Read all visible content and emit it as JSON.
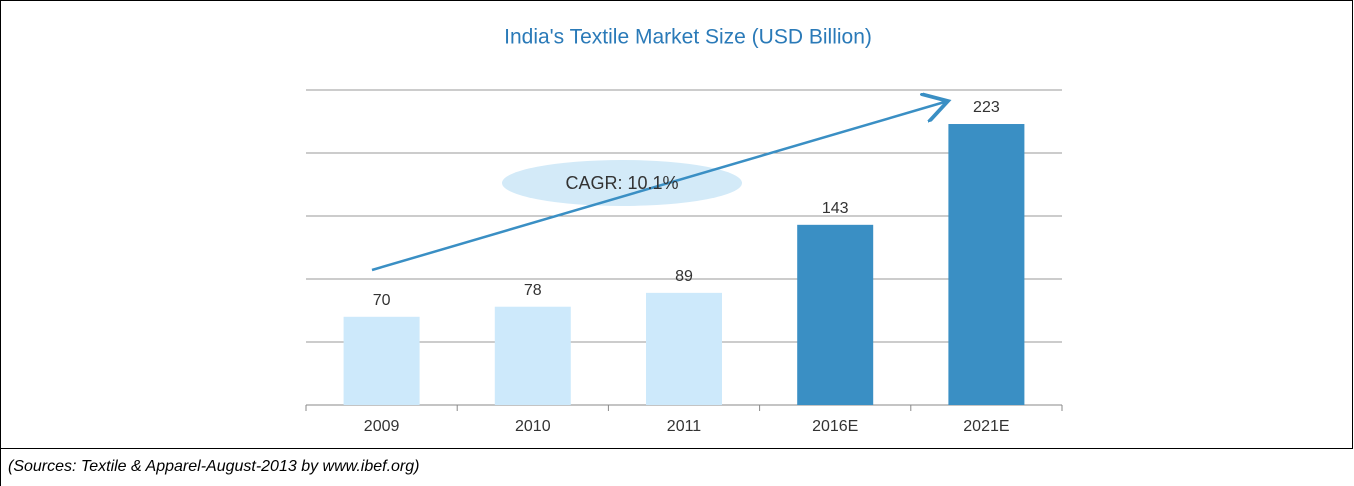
{
  "chart_data": {
    "type": "bar",
    "title": "India's Textile Market Size (USD Billion)",
    "categories": [
      "2009",
      "2010",
      "2011",
      "2016E",
      "2021E"
    ],
    "values": [
      70,
      78,
      89,
      143,
      223
    ],
    "colors": [
      "#cde9fb",
      "#cde9fb",
      "#cde9fb",
      "#3a8fc4",
      "#3a8fc4"
    ],
    "ylim": [
      0,
      250
    ],
    "yticks": [
      0,
      50,
      100,
      150,
      200,
      250
    ],
    "grid": true,
    "annotation": "CAGR: 10.1%",
    "source": "(Sources: Textile & Apparel-August-2013 by www.ibef.org)"
  }
}
